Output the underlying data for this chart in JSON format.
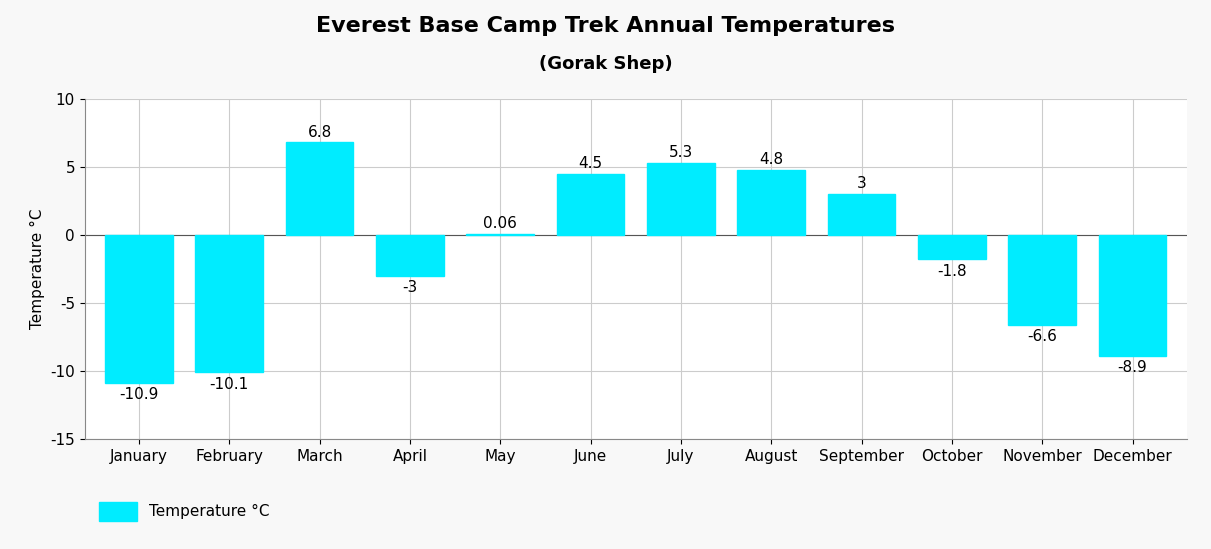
{
  "title": "Everest Base Camp Trek Annual Temperatures",
  "subtitle": "(Gorak Shep)",
  "months": [
    "January",
    "February",
    "March",
    "April",
    "May",
    "June",
    "July",
    "August",
    "September",
    "October",
    "November",
    "December"
  ],
  "temperatures": [
    -10.9,
    -10.1,
    6.8,
    -3,
    0.06,
    4.5,
    5.3,
    4.8,
    3,
    -1.8,
    -6.6,
    -8.9
  ],
  "bar_color": "#00ECFF",
  "ylabel": "Temperature °C",
  "ylim": [
    -15,
    10
  ],
  "yticks": [
    -15,
    -10,
    -5,
    0,
    5,
    10
  ],
  "legend_label": "Temperature °C",
  "background_color": "#f8f8f8",
  "plot_bg_color": "#ffffff",
  "grid_color": "#cccccc",
  "title_fontsize": 16,
  "subtitle_fontsize": 13,
  "label_fontsize": 11,
  "tick_fontsize": 11,
  "annotation_fontsize": 11
}
